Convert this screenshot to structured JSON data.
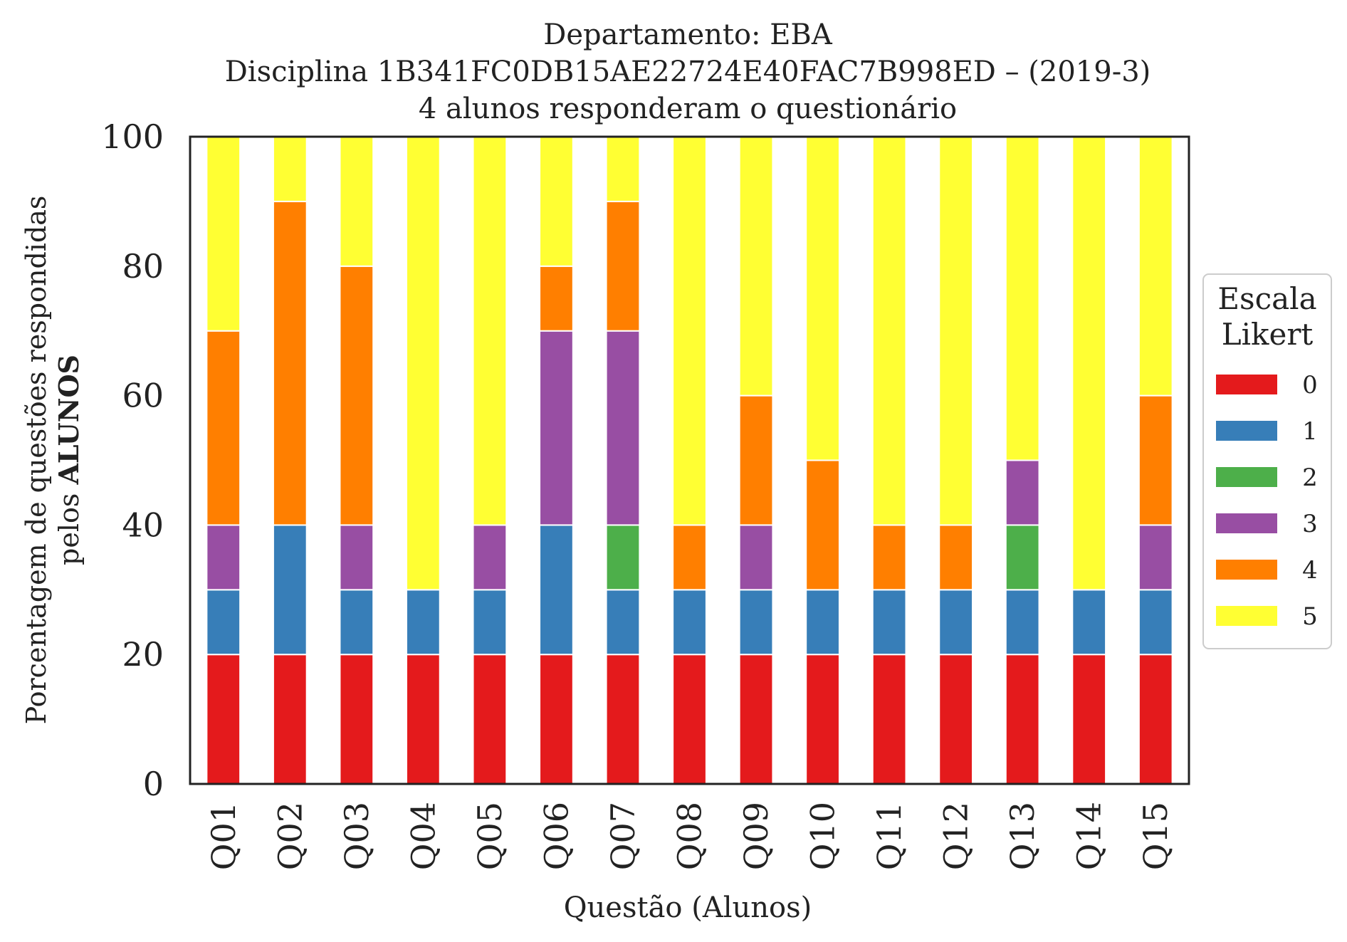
{
  "chart_data": {
    "type": "bar",
    "stacked": true,
    "title_lines": [
      "Departamento: EBA",
      "Disciplina 1B341FC0DB15AE22724E40FAC7B998ED – (2019-3)",
      "4 alunos responderam o questionário"
    ],
    "xlabel": "Questão (Alunos)",
    "ylabel_line1": "Porcentagem de questões respondidas",
    "ylabel_line2_prefix": "pelos ",
    "ylabel_line2_bold": "ALUNOS",
    "ylim": [
      0,
      100
    ],
    "yticks": [
      0,
      20,
      40,
      60,
      80,
      100
    ],
    "categories": [
      "Q01",
      "Q02",
      "Q03",
      "Q04",
      "Q05",
      "Q06",
      "Q07",
      "Q08",
      "Q09",
      "Q10",
      "Q11",
      "Q12",
      "Q13",
      "Q14",
      "Q15"
    ],
    "legend": {
      "title_lines": [
        "Escala",
        "Likert"
      ],
      "placement": "right-center"
    },
    "series": [
      {
        "name": "0",
        "color": "#e41a1c",
        "values": [
          20,
          20,
          20,
          20,
          20,
          20,
          20,
          20,
          20,
          20,
          20,
          20,
          20,
          20,
          20
        ]
      },
      {
        "name": "1",
        "color": "#377eb8",
        "values": [
          10,
          20,
          10,
          10,
          10,
          20,
          10,
          10,
          10,
          10,
          10,
          10,
          10,
          10,
          10
        ]
      },
      {
        "name": "2",
        "color": "#4daf4a",
        "values": [
          0,
          0,
          0,
          0,
          0,
          0,
          10,
          0,
          0,
          0,
          0,
          0,
          10,
          0,
          0
        ]
      },
      {
        "name": "3",
        "color": "#984ea3",
        "values": [
          10,
          0,
          10,
          0,
          10,
          30,
          30,
          0,
          10,
          0,
          0,
          0,
          10,
          0,
          10
        ]
      },
      {
        "name": "4",
        "color": "#ff7f00",
        "values": [
          30,
          50,
          40,
          0,
          0,
          10,
          20,
          10,
          20,
          20,
          10,
          10,
          0,
          0,
          20
        ]
      },
      {
        "name": "5",
        "color": "#ffff33",
        "values": [
          30,
          10,
          20,
          70,
          60,
          20,
          10,
          60,
          40,
          50,
          60,
          60,
          50,
          70,
          40
        ]
      }
    ]
  }
}
